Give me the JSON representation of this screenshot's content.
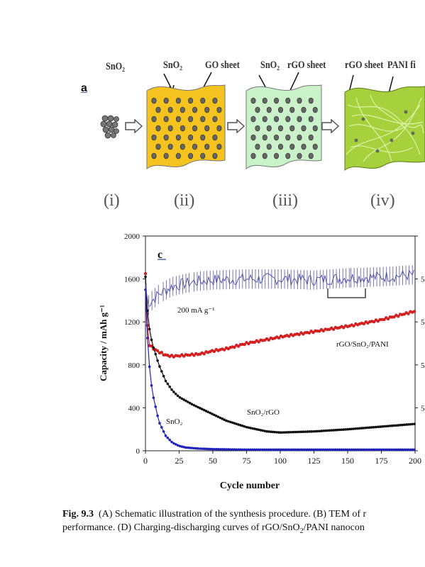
{
  "schematic": {
    "panel_label": "a",
    "labels": {
      "sno2_1": "SnO₂",
      "sno2_2": "SnO₂",
      "go_sheet": "GO sheet",
      "sno2_3": "SnO₂",
      "rgo_sheet_1": "rGO sheet",
      "rgo_sheet_2": "rGO sheet",
      "pani": "PANI fi"
    },
    "steps": [
      "(i)",
      "(ii)",
      "(iii)",
      "(iv)"
    ],
    "colors": {
      "go": "#f4c31f",
      "rgo": "#c9f2c9",
      "pani": "#a6d13c"
    }
  },
  "chart_panel_label": "c",
  "chart_data": {
    "type": "line",
    "xlabel": "Cycle number",
    "ylabel": "Capacity / mAh g⁻¹",
    "xlim": [
      0,
      200
    ],
    "ylim": [
      0,
      2000
    ],
    "xticks": [
      "0",
      "25",
      "50",
      "75",
      "100",
      "125",
      "150",
      "175",
      "200"
    ],
    "yticks": [
      "0",
      "400",
      "800",
      "1200",
      "1600",
      "2000"
    ],
    "right_tick_label": "5",
    "annotations": {
      "rate": "200 mA g⁻¹"
    },
    "series": [
      {
        "name": "rGO/SnO₂/PANI",
        "color": "#d42020",
        "x": [
          0,
          2,
          5,
          10,
          15,
          20,
          30,
          40,
          50,
          60,
          75,
          100,
          125,
          150,
          175,
          200
        ],
        "y": [
          1650,
          1000,
          960,
          920,
          890,
          880,
          890,
          900,
          930,
          950,
          1000,
          1060,
          1110,
          1160,
          1220,
          1300
        ]
      },
      {
        "name": "SnO₂/rGO",
        "color": "#111111",
        "x": [
          0,
          2,
          5,
          10,
          15,
          20,
          25,
          35,
          50,
          60,
          75,
          90,
          100,
          125,
          150,
          175,
          200
        ],
        "y": [
          1620,
          1200,
          1000,
          800,
          650,
          560,
          500,
          430,
          340,
          280,
          220,
          180,
          170,
          180,
          200,
          225,
          250
        ]
      },
      {
        "name": "SnO₂",
        "color": "#2222bb",
        "x": [
          0,
          2,
          5,
          10,
          15,
          20,
          25,
          30,
          40,
          50,
          75,
          100,
          150,
          200
        ],
        "y": [
          1500,
          900,
          550,
          270,
          140,
          75,
          45,
          30,
          20,
          15,
          10,
          10,
          10,
          10
        ]
      },
      {
        "name": "",
        "color": "#5555aa",
        "x": [
          0,
          2,
          5,
          10,
          20,
          30,
          40,
          50,
          75,
          100,
          125,
          150,
          175,
          200
        ],
        "y": [
          1550,
          1350,
          1400,
          1460,
          1530,
          1560,
          1580,
          1590,
          1600,
          1600,
          1590,
          1610,
          1620,
          1640
        ]
      }
    ]
  },
  "caption": {
    "fig_label": "Fig. 9.3",
    "line1": "(A) Schematic illustration of the synthesis procedure. (B) TEM of r",
    "line2_a": "performance. (D) Charging-discharging curves of rGO/SnO",
    "line2_sub": "2",
    "line2_b": "/PANI nanocon"
  }
}
